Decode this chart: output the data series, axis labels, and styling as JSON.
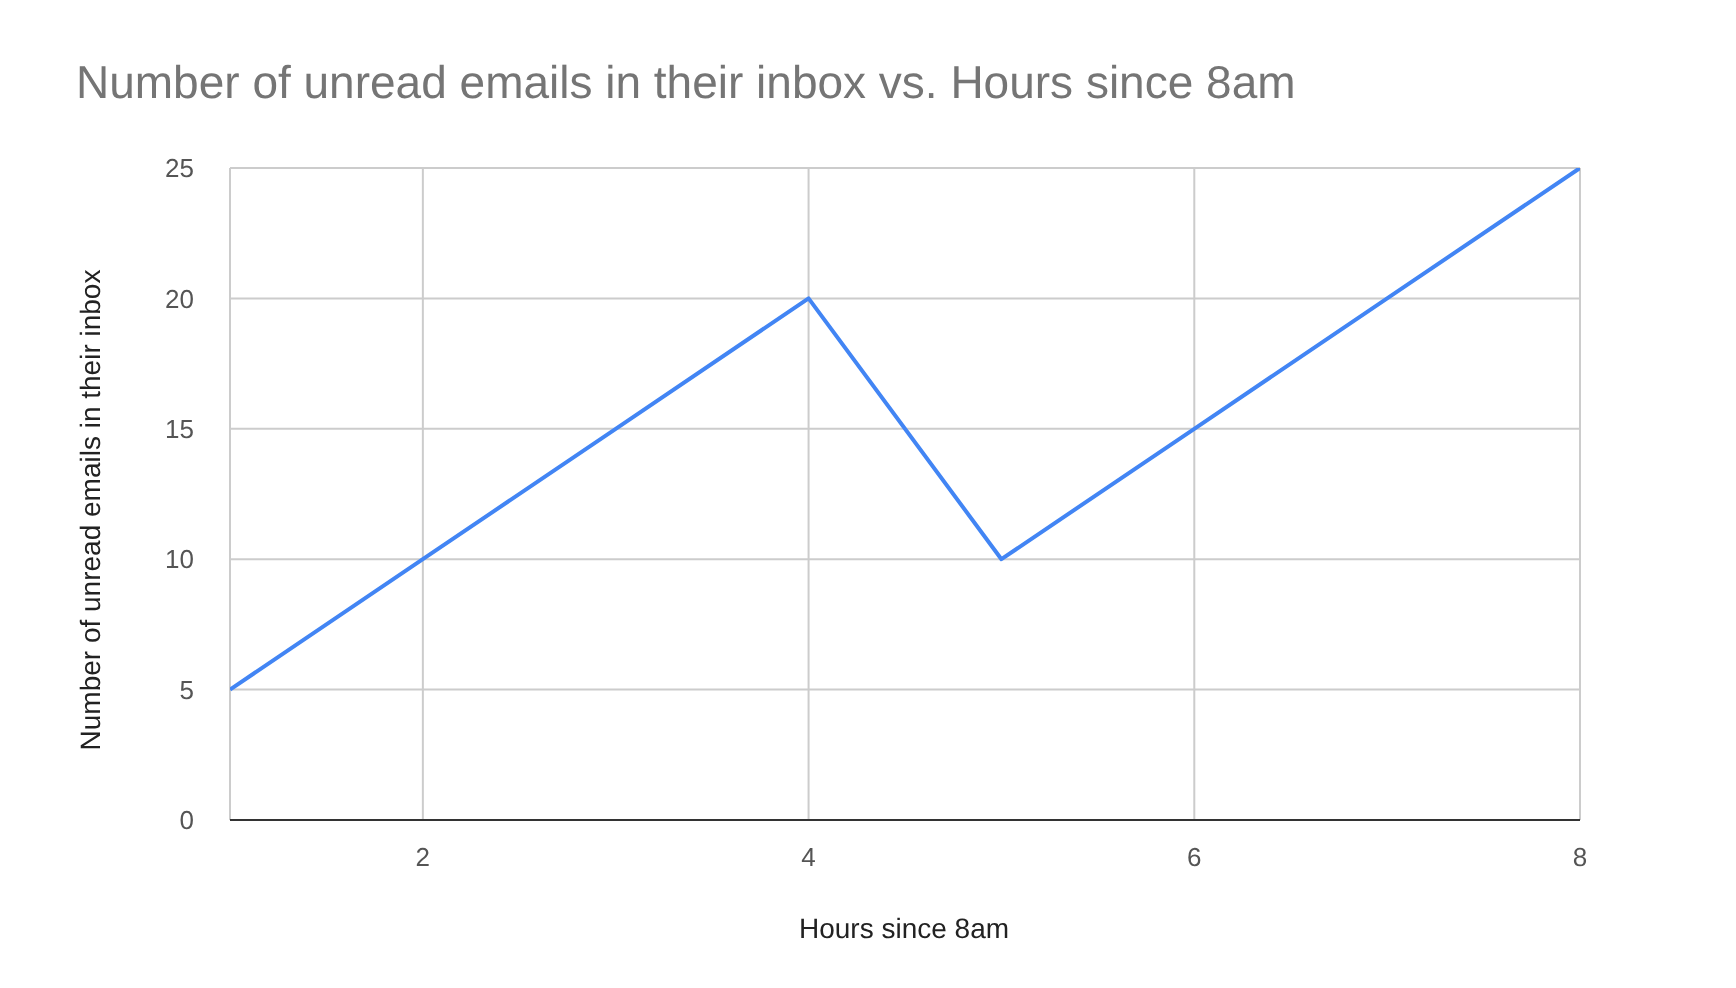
{
  "chart_data": {
    "type": "line",
    "title": "Number of unread emails in their inbox vs. Hours since 8am",
    "xlabel": "Hours since 8am",
    "ylabel": "Number of unread emails in their inbox",
    "x": [
      1,
      2,
      3,
      4,
      5,
      6,
      7,
      8
    ],
    "series": [
      {
        "color": "#4285f4",
        "values": [
          5,
          10,
          15,
          20,
          10,
          15,
          20,
          25
        ]
      }
    ],
    "xlim": [
      1,
      8
    ],
    "xticks": [
      2,
      4,
      6,
      8
    ],
    "ylim": [
      0,
      25
    ],
    "yticks": [
      0,
      5,
      10,
      15,
      20,
      25
    ],
    "grid": true
  }
}
